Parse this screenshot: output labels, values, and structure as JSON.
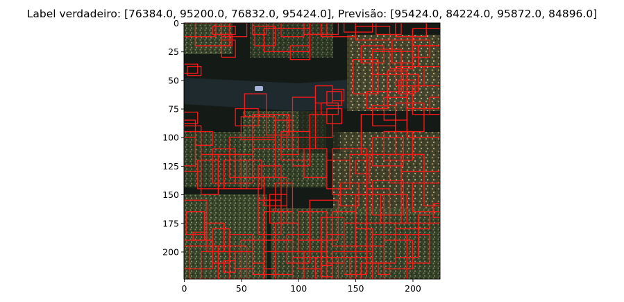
{
  "figure": {
    "title": "Label verdadeiro: [76384.0, 95200.0, 76832.0, 95424.0], Previsão: [95424.0, 84224.0, 95872.0, 84896.0]"
  },
  "image": {
    "description_colors": {
      "background": "#141a16",
      "road": "#1f2a2e",
      "canopy_light": "#6f7a4a",
      "canopy_dark": "#2d3a22",
      "box": "#ff1a1a"
    },
    "extent": {
      "x": [
        0,
        224
      ],
      "y": [
        224,
        0
      ]
    }
  },
  "axes": {
    "x_ticks": [
      0,
      50,
      100,
      150,
      200
    ],
    "y_ticks": [
      0,
      25,
      50,
      75,
      100,
      125,
      150,
      175,
      200
    ]
  },
  "boxes": [
    [
      0,
      0,
      28,
      12
    ],
    [
      10,
      0,
      40,
      20
    ],
    [
      25,
      3,
      45,
      10
    ],
    [
      33,
      0,
      55,
      12
    ],
    [
      60,
      0,
      72,
      10
    ],
    [
      62,
      3,
      80,
      20
    ],
    [
      78,
      0,
      110,
      25
    ],
    [
      85,
      0,
      105,
      12
    ],
    [
      105,
      0,
      125,
      10
    ],
    [
      110,
      0,
      135,
      10
    ],
    [
      120,
      0,
      150,
      12
    ],
    [
      140,
      0,
      165,
      8
    ],
    [
      150,
      3,
      180,
      15
    ],
    [
      168,
      0,
      190,
      10
    ],
    [
      185,
      0,
      212,
      12
    ],
    [
      200,
      5,
      224,
      20
    ],
    [
      33,
      10,
      42,
      20
    ],
    [
      33,
      15,
      45,
      30
    ],
    [
      93,
      20,
      110,
      32
    ],
    [
      70,
      5,
      110,
      25
    ],
    [
      165,
      25,
      190,
      45
    ],
    [
      155,
      20,
      175,
      35
    ],
    [
      182,
      15,
      200,
      35
    ],
    [
      200,
      15,
      215,
      30
    ],
    [
      205,
      20,
      224,
      38
    ],
    [
      180,
      25,
      200,
      40
    ],
    [
      3,
      38,
      15,
      46
    ],
    [
      0,
      36,
      12,
      44
    ],
    [
      148,
      32,
      170,
      62
    ],
    [
      165,
      23,
      190,
      60
    ],
    [
      178,
      42,
      195,
      65
    ],
    [
      185,
      38,
      210,
      55
    ],
    [
      200,
      55,
      224,
      80
    ],
    [
      188,
      50,
      202,
      62
    ],
    [
      192,
      45,
      205,
      60
    ],
    [
      115,
      55,
      130,
      70
    ],
    [
      125,
      60,
      138,
      72
    ],
    [
      130,
      58,
      140,
      68
    ],
    [
      160,
      60,
      178,
      75
    ],
    [
      165,
      72,
      185,
      90
    ],
    [
      175,
      65,
      195,
      85
    ],
    [
      185,
      70,
      210,
      95
    ],
    [
      195,
      75,
      224,
      100
    ],
    [
      215,
      65,
      224,
      80
    ],
    [
      0,
      78,
      12,
      88
    ],
    [
      0,
      85,
      10,
      95
    ],
    [
      53,
      62,
      72,
      82
    ],
    [
      45,
      75,
      65,
      90
    ],
    [
      50,
      82,
      80,
      102
    ],
    [
      60,
      80,
      90,
      110
    ],
    [
      72,
      80,
      92,
      98
    ],
    [
      80,
      85,
      95,
      110
    ],
    [
      85,
      100,
      100,
      115
    ],
    [
      85,
      95,
      110,
      120
    ],
    [
      95,
      100,
      110,
      125
    ],
    [
      95,
      65,
      115,
      110
    ],
    [
      120,
      70,
      135,
      80
    ],
    [
      125,
      75,
      138,
      88
    ],
    [
      110,
      80,
      130,
      100
    ],
    [
      105,
      110,
      125,
      135
    ],
    [
      60,
      100,
      80,
      135
    ],
    [
      40,
      100,
      60,
      135
    ],
    [
      25,
      110,
      45,
      140
    ],
    [
      30,
      115,
      50,
      145
    ],
    [
      45,
      115,
      60,
      140
    ],
    [
      50,
      120,
      68,
      145
    ],
    [
      0,
      90,
      15,
      130
    ],
    [
      0,
      100,
      10,
      125
    ],
    [
      10,
      95,
      25,
      107
    ],
    [
      15,
      115,
      30,
      150
    ],
    [
      12,
      120,
      30,
      145
    ],
    [
      35,
      120,
      55,
      145
    ],
    [
      65,
      125,
      85,
      155
    ],
    [
      70,
      135,
      90,
      160
    ],
    [
      80,
      140,
      95,
      165
    ],
    [
      75,
      150,
      90,
      175
    ],
    [
      130,
      110,
      160,
      150
    ],
    [
      125,
      120,
      145,
      145
    ],
    [
      145,
      115,
      162,
      140
    ],
    [
      137,
      140,
      153,
      160
    ],
    [
      155,
      80,
      185,
      115
    ],
    [
      165,
      100,
      192,
      125
    ],
    [
      175,
      95,
      200,
      120
    ],
    [
      180,
      115,
      210,
      140
    ],
    [
      190,
      115,
      210,
      130
    ],
    [
      190,
      130,
      224,
      175
    ],
    [
      200,
      140,
      224,
      165
    ],
    [
      210,
      140,
      224,
      160
    ],
    [
      218,
      158,
      224,
      170
    ],
    [
      205,
      168,
      215,
      180
    ],
    [
      165,
      138,
      192,
      168
    ],
    [
      172,
      150,
      195,
      175
    ],
    [
      160,
      145,
      180,
      175
    ],
    [
      150,
      150,
      175,
      195
    ],
    [
      0,
      155,
      20,
      195
    ],
    [
      2,
      165,
      18,
      185
    ],
    [
      20,
      175,
      35,
      200
    ],
    [
      25,
      180,
      40,
      210
    ],
    [
      0,
      190,
      25,
      215
    ],
    [
      5,
      195,
      30,
      224
    ],
    [
      15,
      200,
      40,
      224
    ],
    [
      30,
      195,
      55,
      224
    ],
    [
      40,
      185,
      60,
      200
    ],
    [
      45,
      200,
      60,
      215
    ],
    [
      50,
      190,
      70,
      224
    ],
    [
      65,
      155,
      85,
      185
    ],
    [
      70,
      165,
      95,
      190
    ],
    [
      80,
      175,
      100,
      200
    ],
    [
      70,
      190,
      95,
      220
    ],
    [
      80,
      200,
      105,
      224
    ],
    [
      90,
      185,
      110,
      210
    ],
    [
      95,
      205,
      115,
      224
    ],
    [
      100,
      190,
      120,
      215
    ],
    [
      105,
      200,
      125,
      224
    ],
    [
      100,
      165,
      125,
      200
    ],
    [
      110,
      155,
      135,
      190
    ],
    [
      120,
      170,
      140,
      205
    ],
    [
      125,
      185,
      140,
      210
    ],
    [
      115,
      205,
      135,
      224
    ],
    [
      130,
      200,
      150,
      224
    ],
    [
      140,
      195,
      160,
      220
    ],
    [
      145,
      205,
      165,
      224
    ],
    [
      155,
      210,
      175,
      224
    ],
    [
      130,
      165,
      150,
      195
    ],
    [
      140,
      175,
      160,
      205
    ],
    [
      150,
      180,
      165,
      200
    ],
    [
      160,
      175,
      185,
      210
    ],
    [
      165,
      185,
      195,
      224
    ],
    [
      175,
      190,
      200,
      215
    ],
    [
      185,
      180,
      205,
      205
    ],
    [
      195,
      185,
      215,
      210
    ],
    [
      70,
      200,
      80,
      215
    ],
    [
      35,
      208,
      45,
      218
    ],
    [
      60,
      210,
      70,
      220
    ],
    [
      120,
      212,
      130,
      222
    ],
    [
      170,
      210,
      180,
      220
    ],
    [
      8,
      183,
      18,
      190
    ],
    [
      150,
      120,
      162,
      132
    ]
  ]
}
